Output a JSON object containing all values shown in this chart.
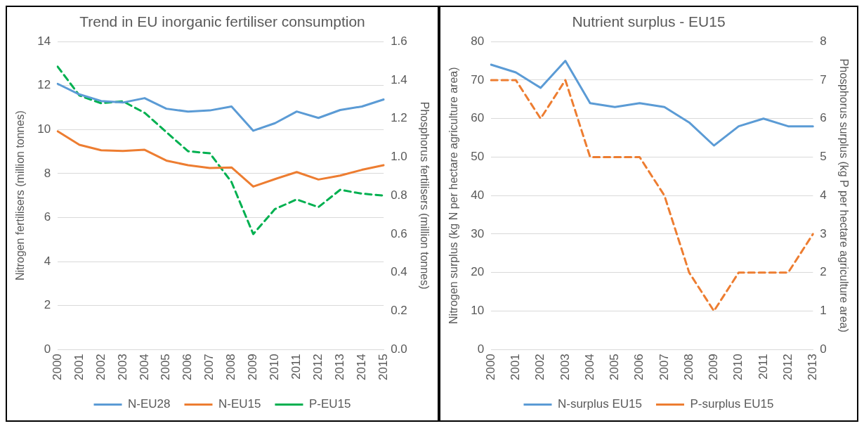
{
  "chart_data": [
    {
      "type": "line",
      "title": "Trend in EU inorganic fertiliser consumption",
      "ylabel": "Nitrogen fertilisers (million tonnes)",
      "y2label": "Phosphorus fertilisers (million tonnes)",
      "categories": [
        "2000",
        "2001",
        "2002",
        "2003",
        "2004",
        "2005",
        "2006",
        "2007",
        "2008",
        "2009",
        "2010",
        "2011",
        "2012",
        "2013",
        "2014",
        "2015"
      ],
      "ylim": [
        0,
        14
      ],
      "yticks": [
        0,
        2,
        4,
        6,
        8,
        10,
        12,
        14
      ],
      "y2lim": [
        0,
        1.6
      ],
      "y2ticks": [
        {
          "value": 0,
          "label": "0.0"
        },
        {
          "value": 0.2,
          "label": "0.2"
        },
        {
          "value": 0.4,
          "label": "0.4"
        },
        {
          "value": 0.6,
          "label": "0.6"
        },
        {
          "value": 0.8,
          "label": "0.8"
        },
        {
          "value": 1,
          "label": "1.0"
        },
        {
          "value": 1.2,
          "label": "1.2"
        },
        {
          "value": 1.4,
          "label": "1.4"
        },
        {
          "value": 1.6,
          "label": "1.6"
        }
      ],
      "grid": "y",
      "legend": "bottom",
      "marker": "none",
      "series": [
        {
          "name": "N-EU28",
          "color": "#5b9bd5",
          "line_style": "solid",
          "values": [
            12.08,
            11.6,
            11.3,
            11.23,
            11.43,
            10.95,
            10.82,
            10.87,
            11.05,
            9.95,
            10.29,
            10.82,
            10.53,
            10.89,
            11.05,
            11.37
          ]
        },
        {
          "name": "N-EU15",
          "color": "#ed7d31",
          "line_style": "solid",
          "values": [
            9.92,
            9.31,
            9.06,
            9.03,
            9.08,
            8.59,
            8.38,
            8.25,
            8.28,
            7.41,
            7.75,
            8.07,
            7.73,
            7.91,
            8.17,
            8.38
          ]
        },
        {
          "name": "P-EU15",
          "color": "#00b050",
          "line_style": "dashed",
          "axis": "y2",
          "values": [
            1.47,
            1.32,
            1.28,
            1.29,
            1.23,
            1.13,
            1.03,
            1.02,
            0.87,
            0.6,
            0.73,
            0.78,
            0.74,
            0.83,
            0.81,
            0.8
          ]
        }
      ]
    },
    {
      "type": "line",
      "title": "Nutrient surplus - EU15",
      "ylabel": "Nitrogen surplus (kg N per hectare agriculture area)",
      "y2label": "Phosphorus surplus (kg P per hectare agriculture area)",
      "categories": [
        "2000",
        "2001",
        "2002",
        "2003",
        "2004",
        "2005",
        "2006",
        "2007",
        "2008",
        "2009",
        "2010",
        "2011",
        "2012",
        "2013"
      ],
      "ylim": [
        0,
        80
      ],
      "yticks": [
        0,
        10,
        20,
        30,
        40,
        50,
        60,
        70,
        80
      ],
      "y2lim": [
        0,
        8
      ],
      "y2ticks": [
        0,
        1,
        2,
        3,
        4,
        5,
        6,
        7,
        8
      ],
      "grid": "y",
      "legend": "bottom",
      "marker": "none",
      "series": [
        {
          "name": "N-surplus EU15",
          "color": "#5b9bd5",
          "line_style": "solid",
          "values": [
            74,
            72,
            68,
            75,
            64,
            63,
            64,
            63,
            59,
            53,
            58,
            60,
            58,
            58
          ]
        },
        {
          "name": "P-surplus EU15",
          "color": "#ed7d31",
          "line_style": "dashed",
          "axis": "y2",
          "values": [
            7,
            7,
            6,
            7,
            5,
            5,
            5,
            4,
            2,
            1,
            2,
            2,
            2,
            3
          ]
        }
      ]
    }
  ]
}
